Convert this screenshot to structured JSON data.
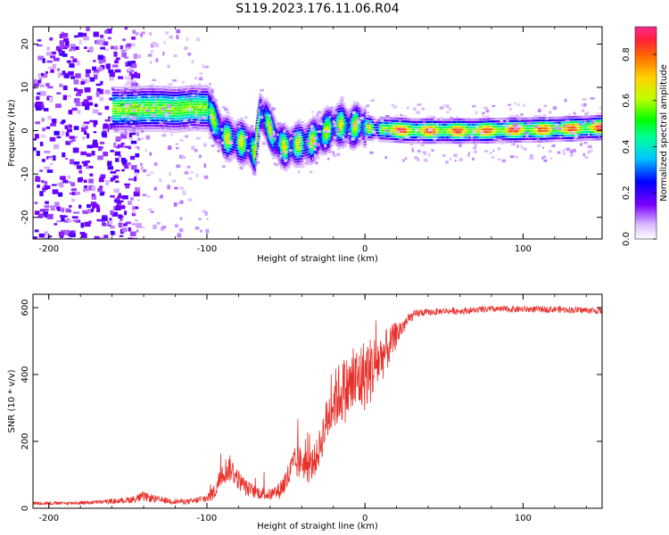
{
  "figure": {
    "title": "S119.2023.176.11.06.R04"
  },
  "chart_data": [
    {
      "type": "heatmap",
      "xlabel": "Height of straight line (km)",
      "ylabel": "Frequency (Hz)",
      "xlim": [
        -210,
        150
      ],
      "ylim": [
        -25,
        24
      ],
      "x_ticks": [
        -200,
        -100,
        0,
        100
      ],
      "x_tick_labels": [
        "-200",
        "-100",
        "0",
        "100"
      ],
      "y_ticks": [
        -20,
        -10,
        0,
        10,
        20
      ],
      "y_tick_labels": [
        "-20",
        "-10",
        "0",
        "10",
        "20"
      ],
      "colorbar": {
        "label": "Normalized spectral amplitude",
        "range": [
          0,
          0.92
        ],
        "ticks": [
          0.0,
          0.2,
          0.4,
          0.6,
          0.8
        ],
        "tick_labels": [
          "0.0",
          "0.2",
          "0.4",
          "0.6",
          "0.8"
        ]
      },
      "ridge": {
        "x": [
          -160,
          -150,
          -140,
          -130,
          -120,
          -110,
          -100,
          -95,
          -90,
          -85,
          -80,
          -75,
          -70,
          -67,
          -63,
          -58,
          -55,
          -50,
          -45,
          -40,
          -35,
          -30,
          -25,
          -20,
          -15,
          -10,
          -5,
          0,
          5,
          10,
          15,
          20,
          30,
          50,
          70,
          90,
          110,
          130,
          150
        ],
        "y": [
          5,
          5,
          5.2,
          5.2,
          5,
          5.4,
          5.2,
          2,
          -1.5,
          -2,
          -2.5,
          -3,
          -5,
          4,
          2.5,
          -1.5,
          -3,
          -4,
          -3.2,
          -3,
          -2.5,
          -1.5,
          0,
          1,
          1.5,
          0.5,
          1.5,
          0.8,
          0.5,
          0.4,
          0.3,
          0.2,
          0,
          0,
          0,
          0.2,
          0.3,
          0.5,
          0.8
        ]
      },
      "noise_region_x": [
        -210,
        -150
      ],
      "grid": false
    },
    {
      "type": "line",
      "xlabel": "Height of straight line (km)",
      "ylabel": "SNR (10 * v/v)",
      "xlim": [
        -210,
        150
      ],
      "ylim": [
        0,
        640
      ],
      "x_ticks": [
        -200,
        -100,
        0,
        100
      ],
      "x_tick_labels": [
        "-200",
        "-100",
        "0",
        "100"
      ],
      "y_ticks": [
        0,
        200,
        400,
        600
      ],
      "y_tick_labels": [
        "0",
        "200",
        "400",
        "600"
      ],
      "series": [
        {
          "color": "#e8302a",
          "x": [
            -210,
            -190,
            -170,
            -155,
            -145,
            -140,
            -130,
            -120,
            -110,
            -100,
            -95,
            -90,
            -85,
            -80,
            -75,
            -70,
            -65,
            -60,
            -55,
            -50,
            -45,
            -40,
            -35,
            -30,
            -25,
            -20,
            -15,
            -10,
            -5,
            0,
            5,
            10,
            15,
            20,
            25,
            30,
            35,
            40,
            50,
            60,
            80,
            100,
            120,
            150
          ],
          "y": [
            15,
            15,
            18,
            22,
            28,
            35,
            25,
            20,
            20,
            30,
            50,
            110,
            120,
            85,
            60,
            50,
            45,
            40,
            50,
            80,
            130,
            140,
            120,
            160,
            250,
            320,
            350,
            360,
            380,
            400,
            420,
            450,
            480,
            520,
            550,
            575,
            585,
            585,
            590,
            590,
            595,
            595,
            595,
            590
          ],
          "noise_amplitude": [
            5,
            5,
            6,
            8,
            12,
            15,
            10,
            8,
            8,
            15,
            25,
            40,
            40,
            30,
            25,
            20,
            20,
            18,
            25,
            40,
            50,
            50,
            50,
            50,
            70,
            90,
            100,
            100,
            110,
            110,
            100,
            80,
            60,
            40,
            25,
            15,
            12,
            10,
            10,
            10,
            10,
            10,
            10,
            10
          ]
        }
      ],
      "grid": false
    }
  ]
}
